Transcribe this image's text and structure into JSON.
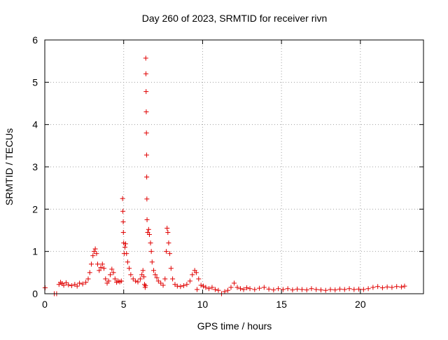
{
  "chart_data": {
    "type": "scatter",
    "title": "Day 260 of 2023, SRMTID for receiver rivn",
    "xlabel": "GPS time / hours",
    "ylabel": "SRMTID / TECUs",
    "xlim": [
      0,
      24
    ],
    "ylim": [
      0,
      6
    ],
    "xticks": [
      0,
      5,
      10,
      15,
      20
    ],
    "yticks": [
      0,
      1,
      2,
      3,
      4,
      5,
      6
    ],
    "grid": true,
    "marker": "+",
    "marker_color": "#e00000",
    "series": [
      {
        "name": "",
        "points": [
          [
            0.02,
            0.14
          ],
          [
            0.6,
            0.0
          ],
          [
            0.75,
            0.0
          ],
          [
            0.9,
            0.22
          ],
          [
            1.0,
            0.27
          ],
          [
            1.1,
            0.24
          ],
          [
            1.2,
            0.2
          ],
          [
            1.35,
            0.26
          ],
          [
            1.5,
            0.21
          ],
          [
            1.7,
            0.19
          ],
          [
            1.9,
            0.22
          ],
          [
            2.05,
            0.18
          ],
          [
            2.2,
            0.25
          ],
          [
            2.4,
            0.23
          ],
          [
            2.6,
            0.27
          ],
          [
            2.75,
            0.35
          ],
          [
            2.85,
            0.5
          ],
          [
            2.95,
            0.7
          ],
          [
            3.05,
            0.9
          ],
          [
            3.12,
            1.0
          ],
          [
            3.2,
            1.06
          ],
          [
            3.28,
            0.95
          ],
          [
            3.35,
            0.7
          ],
          [
            3.45,
            0.55
          ],
          [
            3.55,
            0.62
          ],
          [
            3.65,
            0.7
          ],
          [
            3.75,
            0.6
          ],
          [
            3.85,
            0.35
          ],
          [
            3.95,
            0.25
          ],
          [
            4.05,
            0.3
          ],
          [
            4.15,
            0.45
          ],
          [
            4.25,
            0.58
          ],
          [
            4.35,
            0.5
          ],
          [
            4.45,
            0.35
          ],
          [
            4.55,
            0.27
          ],
          [
            4.65,
            0.3
          ],
          [
            4.75,
            0.28
          ],
          [
            4.85,
            0.3
          ],
          [
            4.93,
            2.25
          ],
          [
            4.95,
            1.95
          ],
          [
            4.97,
            1.7
          ],
          [
            4.98,
            1.45
          ],
          [
            5.0,
            1.2
          ],
          [
            5.03,
            0.95
          ],
          [
            5.08,
            1.1
          ],
          [
            5.12,
            1.18
          ],
          [
            5.18,
            0.95
          ],
          [
            5.25,
            0.75
          ],
          [
            5.35,
            0.6
          ],
          [
            5.45,
            0.45
          ],
          [
            5.6,
            0.35
          ],
          [
            5.75,
            0.3
          ],
          [
            5.9,
            0.28
          ],
          [
            6.05,
            0.35
          ],
          [
            6.15,
            0.45
          ],
          [
            6.22,
            0.55
          ],
          [
            6.28,
            0.4
          ],
          [
            6.32,
            0.22
          ],
          [
            6.36,
            0.15
          ],
          [
            6.38,
            0.19
          ],
          [
            6.4,
            5.57
          ],
          [
            6.41,
            5.2
          ],
          [
            6.42,
            4.78
          ],
          [
            6.43,
            4.3
          ],
          [
            6.44,
            3.8
          ],
          [
            6.45,
            3.28
          ],
          [
            6.46,
            2.76
          ],
          [
            6.47,
            2.24
          ],
          [
            6.48,
            1.75
          ],
          [
            6.52,
            1.45
          ],
          [
            6.58,
            1.52
          ],
          [
            6.63,
            1.4
          ],
          [
            6.7,
            1.2
          ],
          [
            6.75,
            1.0
          ],
          [
            6.8,
            0.75
          ],
          [
            6.9,
            0.55
          ],
          [
            7.0,
            0.45
          ],
          [
            7.1,
            0.38
          ],
          [
            7.2,
            0.3
          ],
          [
            7.35,
            0.25
          ],
          [
            7.5,
            0.2
          ],
          [
            7.62,
            0.35
          ],
          [
            7.7,
            1.0
          ],
          [
            7.75,
            1.55
          ],
          [
            7.8,
            1.45
          ],
          [
            7.85,
            1.2
          ],
          [
            7.92,
            0.95
          ],
          [
            8.0,
            0.6
          ],
          [
            8.1,
            0.35
          ],
          [
            8.25,
            0.22
          ],
          [
            8.4,
            0.18
          ],
          [
            8.6,
            0.17
          ],
          [
            8.8,
            0.19
          ],
          [
            9.0,
            0.22
          ],
          [
            9.2,
            0.3
          ],
          [
            9.35,
            0.45
          ],
          [
            9.5,
            0.55
          ],
          [
            9.6,
            0.5
          ],
          [
            9.65,
            0.1
          ],
          [
            9.75,
            0.35
          ],
          [
            9.9,
            0.2
          ],
          [
            10.05,
            0.18
          ],
          [
            10.2,
            0.15
          ],
          [
            10.4,
            0.12
          ],
          [
            10.6,
            0.15
          ],
          [
            10.8,
            0.1
          ],
          [
            11.0,
            0.08
          ],
          [
            11.2,
            0.0
          ],
          [
            11.4,
            0.05
          ],
          [
            11.6,
            0.08
          ],
          [
            11.8,
            0.15
          ],
          [
            12.0,
            0.25
          ],
          [
            12.2,
            0.15
          ],
          [
            12.4,
            0.12
          ],
          [
            12.6,
            0.1
          ],
          [
            12.8,
            0.14
          ],
          [
            13.0,
            0.12
          ],
          [
            13.3,
            0.1
          ],
          [
            13.6,
            0.13
          ],
          [
            13.9,
            0.15
          ],
          [
            14.2,
            0.11
          ],
          [
            14.5,
            0.09
          ],
          [
            14.8,
            0.12
          ],
          [
            15.1,
            0.1
          ],
          [
            15.4,
            0.12
          ],
          [
            15.7,
            0.09
          ],
          [
            16.0,
            0.11
          ],
          [
            16.3,
            0.1
          ],
          [
            16.6,
            0.09
          ],
          [
            16.9,
            0.12
          ],
          [
            17.2,
            0.1
          ],
          [
            17.5,
            0.09
          ],
          [
            17.8,
            0.08
          ],
          [
            18.1,
            0.1
          ],
          [
            18.4,
            0.09
          ],
          [
            18.7,
            0.11
          ],
          [
            19.0,
            0.1
          ],
          [
            19.3,
            0.12
          ],
          [
            19.6,
            0.1
          ],
          [
            19.9,
            0.11
          ],
          [
            20.2,
            0.1
          ],
          [
            20.5,
            0.12
          ],
          [
            20.8,
            0.15
          ],
          [
            21.1,
            0.17
          ],
          [
            21.4,
            0.14
          ],
          [
            21.7,
            0.16
          ],
          [
            22.0,
            0.15
          ],
          [
            22.3,
            0.17
          ],
          [
            22.6,
            0.16
          ],
          [
            22.8,
            0.18
          ]
        ]
      }
    ]
  }
}
